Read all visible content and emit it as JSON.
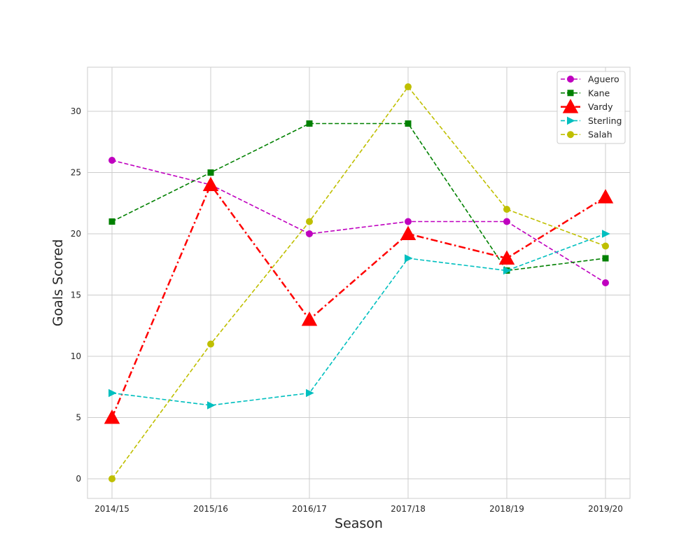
{
  "chart_data": {
    "type": "line",
    "title": "",
    "xlabel": "Season",
    "ylabel": "Goals Scored",
    "categories": [
      "2014/15",
      "2015/16",
      "2016/17",
      "2017/18",
      "2018/19",
      "2019/20"
    ],
    "yticks": [
      0,
      5,
      10,
      15,
      20,
      25,
      30
    ],
    "ylim": [
      -1.6,
      33.6
    ],
    "grid": true,
    "legend_position": "top-right",
    "series": [
      {
        "name": "Aguero",
        "values": [
          26,
          24,
          20,
          21,
          21,
          16
        ],
        "color": "#bf00bf",
        "marker": "circle",
        "line_style": "dashed"
      },
      {
        "name": "Kane",
        "values": [
          21,
          25,
          29,
          29,
          17,
          18
        ],
        "color": "#008000",
        "marker": "square",
        "line_style": "dashed"
      },
      {
        "name": "Vardy",
        "values": [
          5,
          24,
          13,
          20,
          18,
          23
        ],
        "color": "#ff0000",
        "marker": "triangle-up",
        "line_style": "dash-dot"
      },
      {
        "name": "Sterling",
        "values": [
          7,
          6,
          7,
          18,
          17,
          20
        ],
        "color": "#00bfbf",
        "marker": "triangle-right",
        "line_style": "dashed"
      },
      {
        "name": "Salah",
        "values": [
          0,
          11,
          21,
          32,
          22,
          19
        ],
        "color": "#bfbf00",
        "marker": "circle",
        "line_style": "dashed"
      }
    ]
  }
}
